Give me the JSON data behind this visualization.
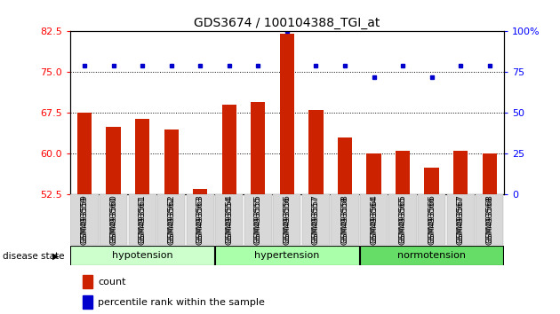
{
  "title": "GDS3674 / 100104388_TGI_at",
  "samples": [
    "GSM493559",
    "GSM493560",
    "GSM493561",
    "GSM493562",
    "GSM493563",
    "GSM493554",
    "GSM493555",
    "GSM493556",
    "GSM493557",
    "GSM493558",
    "GSM493564",
    "GSM493565",
    "GSM493566",
    "GSM493567",
    "GSM493568"
  ],
  "count_values": [
    67.5,
    65.0,
    66.5,
    64.5,
    53.5,
    69.0,
    69.5,
    82.0,
    68.0,
    63.0,
    60.0,
    60.5,
    57.5,
    60.5,
    60.0
  ],
  "percentile_values": [
    79,
    79,
    79,
    79,
    79,
    79,
    79,
    100,
    79,
    79,
    72,
    79,
    72,
    79,
    79
  ],
  "group_info": [
    {
      "start": 0,
      "end": 4,
      "label": "hypotension",
      "color": "#ccffcc"
    },
    {
      "start": 5,
      "end": 9,
      "label": "hypertension",
      "color": "#aaffaa"
    },
    {
      "start": 10,
      "end": 14,
      "label": "normotension",
      "color": "#66dd66"
    }
  ],
  "ylim_left": [
    52.5,
    82.5
  ],
  "ylim_right": [
    0,
    100
  ],
  "yticks_left": [
    52.5,
    60.0,
    67.5,
    75.0,
    82.5
  ],
  "yticks_right": [
    0,
    25,
    50,
    75,
    100
  ],
  "bar_color": "#cc2200",
  "dot_color": "#0000cc",
  "legend_count_label": "count",
  "legend_pct_label": "percentile rank within the sample",
  "disease_state_label": "disease state",
  "bar_width": 0.5,
  "background_color": "#f0f0f0"
}
